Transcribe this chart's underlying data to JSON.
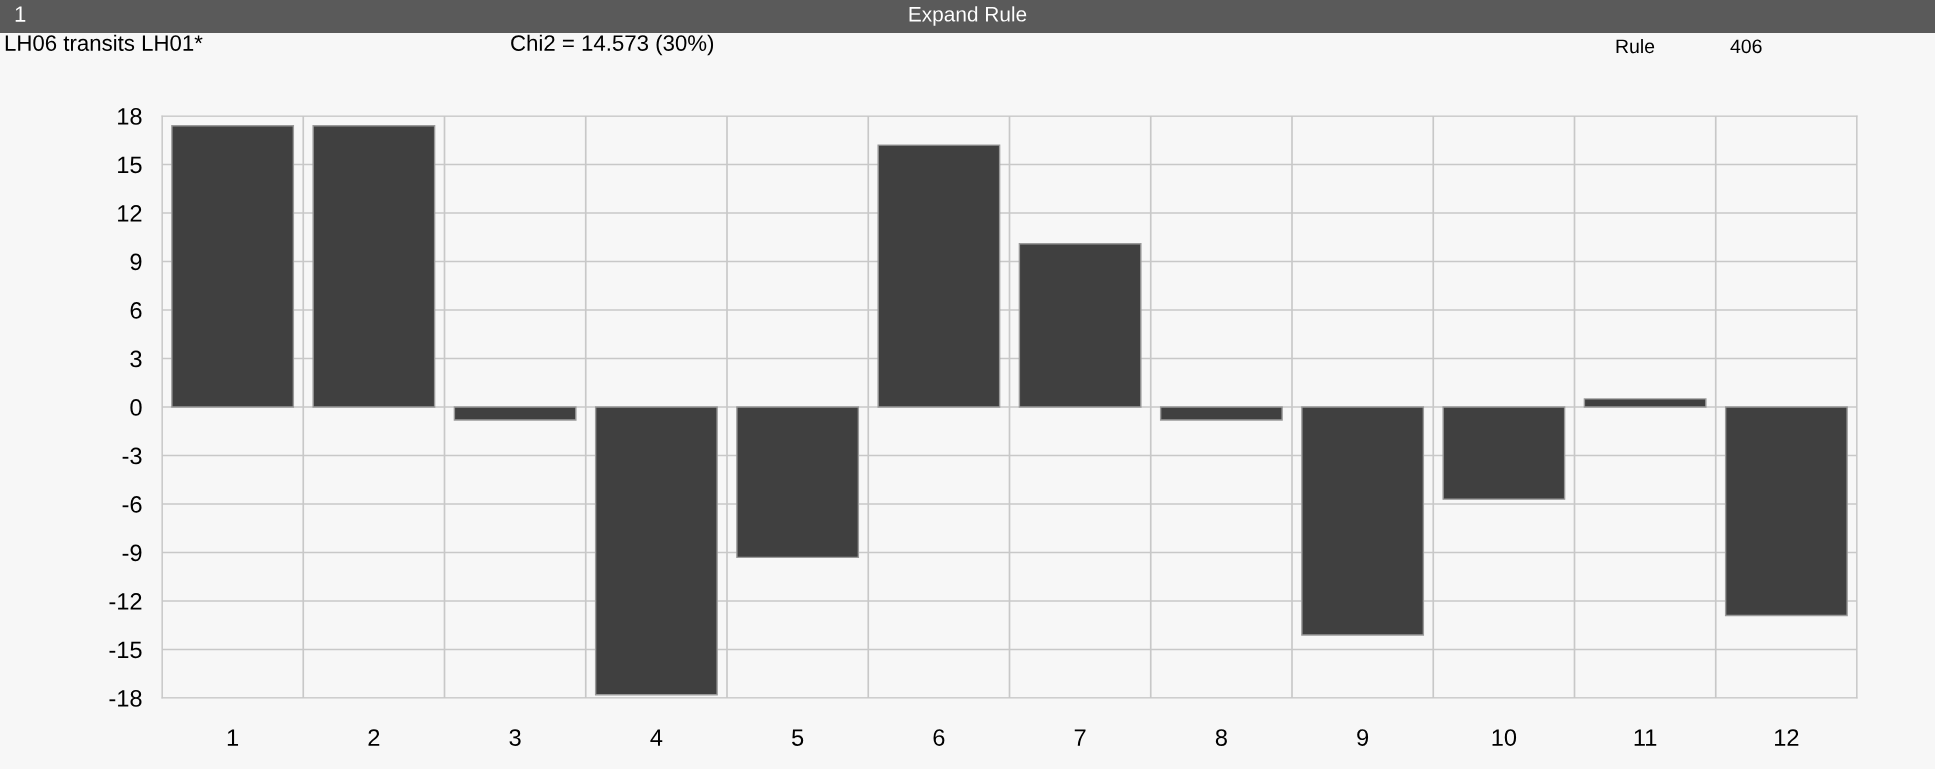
{
  "chart_data": {
    "type": "bar",
    "title": "Expand Rule",
    "subtitle": "LH06 transits LH01*",
    "annotations": [
      "1",
      "Chi2 = 14.573 (30%)",
      "Rule",
      "406"
    ],
    "categories": [
      "1",
      "2",
      "3",
      "4",
      "5",
      "6",
      "7",
      "8",
      "9",
      "10",
      "11",
      "12"
    ],
    "values": [
      17.4,
      17.4,
      -0.8,
      -17.8,
      -9.3,
      16.2,
      10.1,
      -0.8,
      -14.1,
      -5.7,
      0.5,
      -12.9
    ],
    "color": "#404040",
    "ylim": [
      -18,
      18
    ],
    "yticks": [
      -18,
      -15,
      -12,
      -9,
      -6,
      -3,
      0,
      3,
      6,
      9,
      12,
      15,
      18
    ],
    "grid": true
  }
}
